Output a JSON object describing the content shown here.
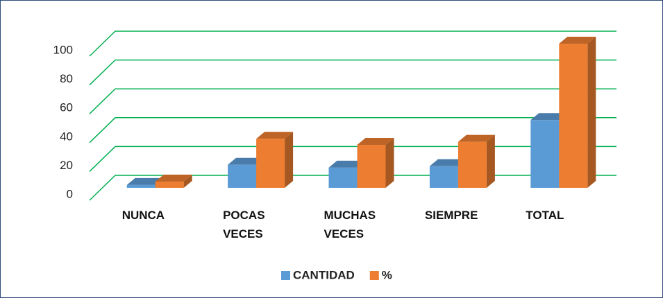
{
  "chart_data": {
    "type": "bar3d",
    "categories": [
      "NUNCA",
      "POCAS VECES",
      "MUCHAS VECES",
      "SIEMPRE",
      "TOTAL"
    ],
    "series": [
      {
        "name": "CANTIDAD",
        "color": "#5b9bd5",
        "values": [
          2,
          16,
          14,
          15,
          47
        ]
      },
      {
        "name": "%",
        "color": "#ed7d31",
        "values": [
          4.3,
          34,
          29.8,
          31.9,
          100
        ]
      }
    ],
    "ylim": [
      0,
      100
    ],
    "yticks": [
      0,
      20,
      40,
      60,
      80,
      100
    ],
    "grid": true,
    "grid_color": "#00b050",
    "legend": "bottom"
  }
}
